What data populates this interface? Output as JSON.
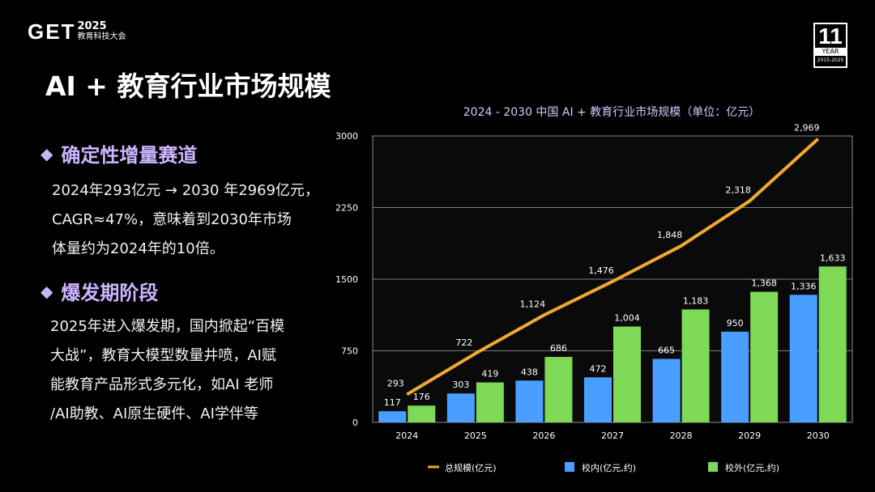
{
  "logo": {
    "mark": "GET",
    "year": "2025",
    "subtitle": "教育科技大会"
  },
  "badge": {
    "number": "11",
    "label": "YEAR",
    "range": "2015-2025"
  },
  "page_title": "AI + 教育行业市场规模",
  "sections": [
    {
      "heading": "确定性增量赛道",
      "lines": [
        "2024年293亿元 → 2030 年2969亿元，",
        "CAGR≈47%，意味着到2030年市场",
        "体量约为2024年的10倍。"
      ]
    },
    {
      "heading": "爆发期阶段",
      "lines": [
        "2025年进入爆发期，国内掀起“百模",
        "大战”，教育大模型数量井喷，AI赋",
        "能教育产品形式多元化，如AI 老师",
        "/AI助教、AI原生硬件、AI学伴等"
      ]
    }
  ],
  "chart_data": {
    "type": "bar",
    "title": "2024 - 2030 中国 AI + 教育行业市场规模（单位：亿元）",
    "categories": [
      "2024",
      "2025",
      "2026",
      "2027",
      "2028",
      "2029",
      "2030"
    ],
    "ylim": [
      0,
      3000
    ],
    "yticks": [
      0,
      750,
      1500,
      2250,
      3000
    ],
    "series": [
      {
        "name": "校内(亿元,约)",
        "kind": "bar",
        "color": "#4a9eff",
        "values": [
          117,
          303,
          438,
          472,
          665,
          950,
          1336
        ],
        "labels": [
          "117",
          "303",
          "438",
          "472",
          "665",
          "950",
          "1,336"
        ]
      },
      {
        "name": "校外(亿元,约)",
        "kind": "bar",
        "color": "#7ed957",
        "values": [
          176,
          419,
          686,
          1004,
          1183,
          1368,
          1633
        ],
        "labels": [
          "176",
          "419",
          "686",
          "1,004",
          "1,183",
          "1,368",
          "1,633"
        ]
      },
      {
        "name": "总规模(亿元)",
        "kind": "line",
        "color": "#f0a830",
        "values": [
          293,
          722,
          1124,
          1476,
          1848,
          2318,
          2969
        ],
        "labels": [
          "293",
          "722",
          "1,124",
          "1,476",
          "1,848",
          "2,318",
          "2,969"
        ]
      }
    ],
    "legend": "bottom"
  }
}
